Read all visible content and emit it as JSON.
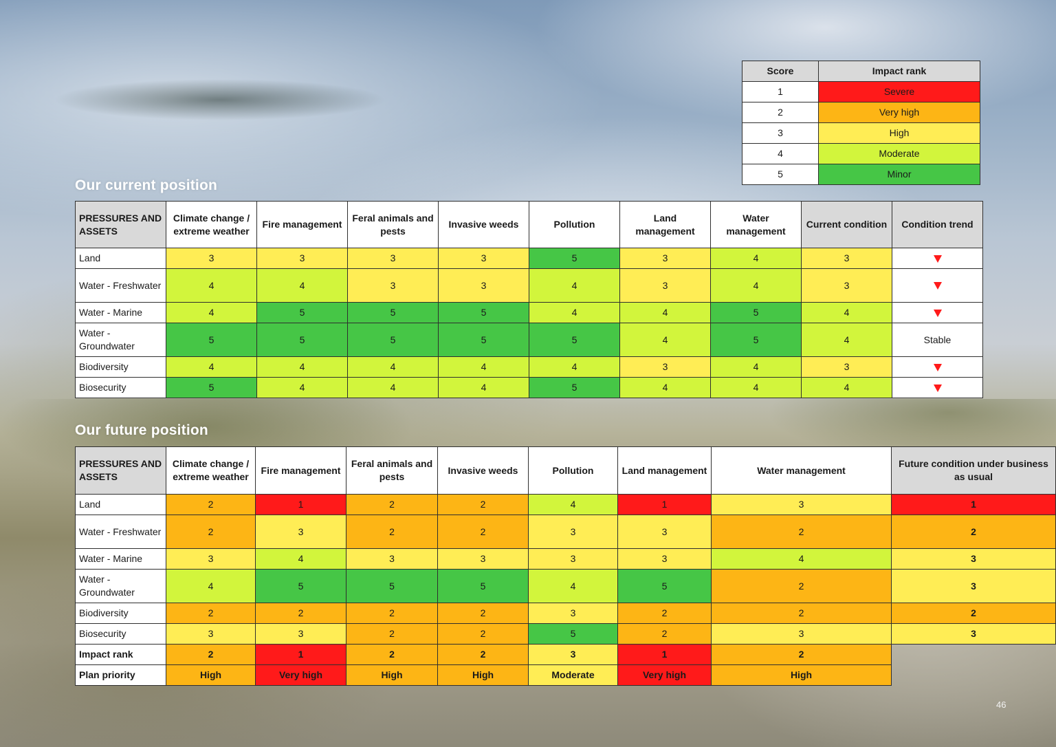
{
  "page": {
    "number": "46"
  },
  "legend": {
    "headers": [
      "Score",
      "Impact rank"
    ],
    "rows": [
      {
        "score": "1",
        "rank": "Severe",
        "color": "#ff1a1a"
      },
      {
        "score": "2",
        "rank": "Very high",
        "color": "#fdb515"
      },
      {
        "score": "3",
        "rank": "High",
        "color": "#ffed55"
      },
      {
        "score": "4",
        "rank": "Moderate",
        "color": "#d2f53c"
      },
      {
        "score": "5",
        "rank": "Minor",
        "color": "#46c646"
      }
    ]
  },
  "current": {
    "title": "Our current position",
    "headers": [
      "PRESSURES AND ASSETS",
      "Climate change / extreme weather",
      "Fire management",
      "Feral animals and pests",
      "Invasive weeds",
      "Pollution",
      "Land management",
      "Water management",
      "Current condition",
      "Condition trend"
    ],
    "rows": [
      {
        "asset": "Land",
        "scores": [
          "3",
          "3",
          "3",
          "3",
          "5",
          "3",
          "4"
        ],
        "condition": "3",
        "trend": "down"
      },
      {
        "asset": "Water - Freshwater",
        "scores": [
          "4",
          "4",
          "3",
          "3",
          "4",
          "3",
          "4"
        ],
        "condition": "3",
        "trend": "down"
      },
      {
        "asset": "Water - Marine",
        "scores": [
          "4",
          "5",
          "5",
          "5",
          "4",
          "4",
          "5"
        ],
        "condition": "4",
        "trend": "down"
      },
      {
        "asset": "Water - Groundwater",
        "scores": [
          "5",
          "5",
          "5",
          "5",
          "5",
          "4",
          "5"
        ],
        "condition": "4",
        "trend": "Stable"
      },
      {
        "asset": "Biodiversity",
        "scores": [
          "4",
          "4",
          "4",
          "4",
          "4",
          "3",
          "4"
        ],
        "condition": "3",
        "trend": "down"
      },
      {
        "asset": "Biosecurity",
        "scores": [
          "5",
          "4",
          "4",
          "4",
          "5",
          "4",
          "4"
        ],
        "condition": "4",
        "trend": "down"
      }
    ]
  },
  "future": {
    "title": "Our future position",
    "headers": [
      "PRESSURES AND ASSETS",
      "Climate change / extreme weather",
      "Fire management",
      "Feral animals and pests",
      "Invasive weeds",
      "Pollution",
      "Land management",
      "Water management",
      "Future condition under business as usual"
    ],
    "rows": [
      {
        "asset": "Land",
        "scores": [
          "2",
          "1",
          "2",
          "2",
          "4",
          "1",
          "3"
        ],
        "condition": "1"
      },
      {
        "asset": "Water - Freshwater",
        "scores": [
          "2",
          "3",
          "2",
          "2",
          "3",
          "3",
          "2"
        ],
        "condition": "2"
      },
      {
        "asset": "Water - Marine",
        "scores": [
          "3",
          "4",
          "3",
          "3",
          "3",
          "3",
          "4"
        ],
        "condition": "3"
      },
      {
        "asset": "Water - Groundwater",
        "scores": [
          "4",
          "5",
          "5",
          "5",
          "4",
          "5",
          "2"
        ],
        "condition": "3"
      },
      {
        "asset": "Biodiversity",
        "scores": [
          "2",
          "2",
          "2",
          "2",
          "3",
          "2",
          "2"
        ],
        "condition": "2"
      },
      {
        "asset": "Biosecurity",
        "scores": [
          "3",
          "3",
          "2",
          "2",
          "5",
          "2",
          "3"
        ],
        "condition": "3"
      }
    ],
    "impact_rank": {
      "label": "Impact rank",
      "values": [
        "2",
        "1",
        "2",
        "2",
        "3",
        "1",
        "2"
      ]
    },
    "plan_priority": {
      "label": "Plan priority",
      "values": [
        "High",
        "Very high",
        "High",
        "High",
        "Moderate",
        "Very high",
        "High"
      ]
    }
  }
}
